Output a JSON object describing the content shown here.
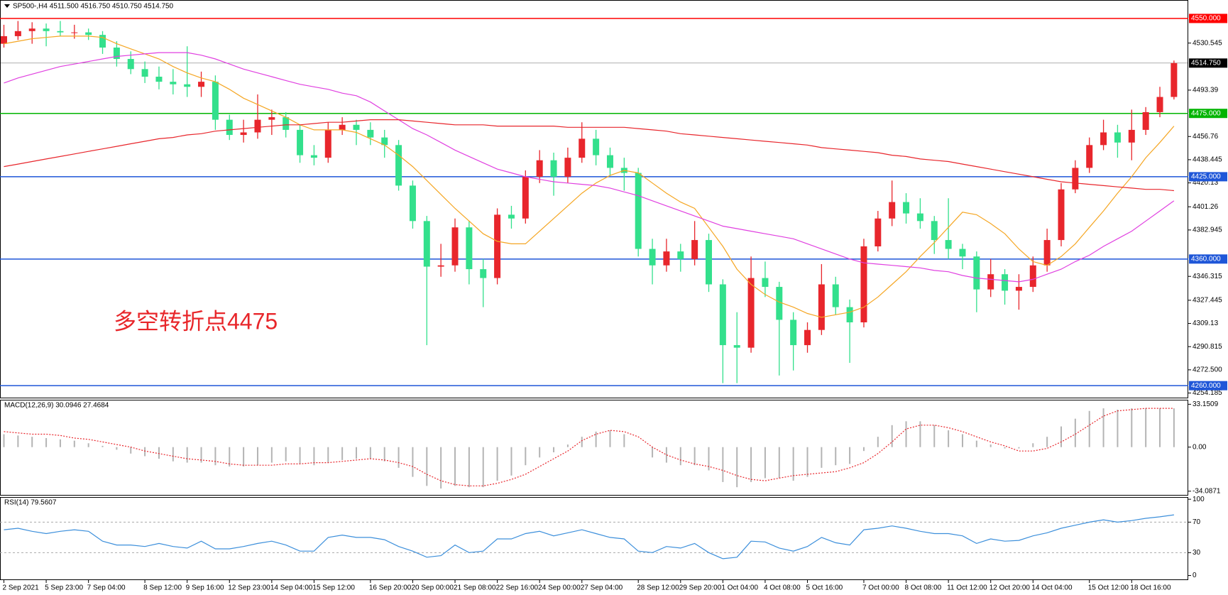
{
  "chart_data": [
    {
      "type": "candlestick",
      "title": "SP500-,H4  4511.500 4516.750 4510.750 4514.750",
      "annotation": "多空转折点4475",
      "categories": [
        "2 Sep 2021",
        null,
        null,
        "5 Sep 23:00",
        null,
        null,
        "7 Sep 04:00",
        null,
        null,
        null,
        "8 Sep 12:00",
        null,
        null,
        "9 Sep 16:00",
        null,
        null,
        "12 Sep 23:00",
        null,
        null,
        "14 Sep 04:00",
        null,
        null,
        "15 Sep 12:00",
        null,
        null,
        null,
        "16 Sep 20:00",
        null,
        null,
        "20 Sep 00:00",
        null,
        null,
        "21 Sep 08:00",
        null,
        null,
        "22 Sep 16:00",
        null,
        null,
        "24 Sep 00:00",
        null,
        null,
        "27 Sep 04:00",
        null,
        null,
        null,
        "28 Sep 12:00",
        null,
        null,
        "29 Sep 20:00",
        null,
        null,
        "1 Oct 04:00",
        null,
        null,
        "4 Oct 08:00",
        null,
        null,
        "5 Oct 16:00",
        null,
        null,
        null,
        "7 Oct 00:00",
        null,
        null,
        "8 Oct 08:00",
        null,
        null,
        "11 Oct 12:00",
        null,
        null,
        "12 Oct 20:00",
        null,
        null,
        "14 Oct 04:00",
        null,
        null,
        null,
        "15 Oct 12:00",
        null,
        null,
        "18 Oct 16:00",
        null,
        null,
        null
      ],
      "open": [
        4530,
        4536,
        4540,
        4542,
        4540,
        4539,
        4539,
        4537,
        4527,
        4518,
        4510,
        4504,
        4500,
        4498,
        4496,
        4500,
        4470,
        4458,
        4460,
        4470,
        4472,
        4462,
        4442,
        4440,
        4462,
        4466,
        4462,
        4456,
        4450,
        4418,
        4390,
        4354,
        4355,
        4385,
        4352,
        4345,
        4395,
        4392,
        4425,
        4438,
        4425,
        4440,
        4455,
        4442,
        4432,
        4428,
        4368,
        4355,
        4366,
        4360,
        4375,
        4340,
        4292,
        4290,
        4345,
        4338,
        4312,
        4292,
        4304,
        4340,
        4322,
        4310,
        4370,
        4392,
        4405,
        4396,
        4390,
        4375,
        4368,
        4362,
        4336,
        4348,
        4335,
        4338,
        4355,
        4375,
        4415,
        4432,
        4450,
        4460,
        4452,
        4462,
        4476,
        4488
      ],
      "high": [
        4545,
        4548,
        4547,
        4546,
        4548,
        4545,
        4542,
        4540,
        4532,
        4524,
        4516,
        4512,
        4510,
        4528,
        4508,
        4505,
        4474,
        4470,
        4490,
        4478,
        4476,
        4466,
        4450,
        4468,
        4472,
        4470,
        4468,
        4462,
        4454,
        4422,
        4394,
        4372,
        4392,
        4390,
        4360,
        4400,
        4402,
        4430,
        4446,
        4444,
        4448,
        4468,
        4462,
        4448,
        4440,
        4432,
        4376,
        4376,
        4372,
        4390,
        4380,
        4344,
        4318,
        4362,
        4358,
        4342,
        4318,
        4310,
        4356,
        4346,
        4328,
        4376,
        4398,
        4422,
        4412,
        4408,
        4394,
        4408,
        4372,
        4366,
        4360,
        4352,
        4348,
        4362,
        4384,
        4420,
        4438,
        4456,
        4470,
        4466,
        4478,
        4480,
        4496,
        4516.75
      ],
      "low": [
        4527,
        4533,
        4530,
        4528,
        4536,
        4534,
        4533,
        4522,
        4512,
        4506,
        4499,
        4494,
        4490,
        4488,
        4488,
        4462,
        4454,
        4452,
        4455,
        4458,
        4456,
        4436,
        4434,
        4436,
        4458,
        4450,
        4450,
        4440,
        4414,
        4384,
        4292,
        4346,
        4350,
        4340,
        4322,
        4340,
        4384,
        4388,
        4420,
        4410,
        4420,
        4436,
        4434,
        4426,
        4414,
        4362,
        4340,
        4350,
        4350,
        4355,
        4334,
        4262,
        4262,
        4286,
        4330,
        4268,
        4272,
        4286,
        4300,
        4316,
        4278,
        4306,
        4366,
        4386,
        4388,
        4384,
        4364,
        4360,
        4352,
        4318,
        4330,
        4324,
        4320,
        4334,
        4350,
        4370,
        4412,
        4428,
        4446,
        4440,
        4438,
        4458,
        4472,
        4486
      ],
      "close": [
        4536,
        4540,
        4542,
        4540,
        4539,
        4539,
        4537,
        4527,
        4518,
        4510,
        4504,
        4500,
        4498,
        4496,
        4500,
        4470,
        4458,
        4460,
        4470,
        4472,
        4462,
        4442,
        4440,
        4462,
        4466,
        4462,
        4456,
        4450,
        4418,
        4390,
        4354,
        4355,
        4385,
        4352,
        4345,
        4395,
        4392,
        4425,
        4438,
        4425,
        4440,
        4455,
        4442,
        4432,
        4428,
        4368,
        4355,
        4366,
        4360,
        4375,
        4340,
        4292,
        4290,
        4345,
        4338,
        4312,
        4292,
        4304,
        4340,
        4322,
        4310,
        4370,
        4392,
        4405,
        4396,
        4390,
        4375,
        4368,
        4362,
        4336,
        4348,
        4335,
        4338,
        4355,
        4375,
        4415,
        4432,
        4450,
        4460,
        4452,
        4462,
        4476,
        4488,
        4514.75
      ],
      "up_color": "#e8262c",
      "down_color": "#33e08c",
      "lines": [
        {
          "color": "#f5a623",
          "values": [
            4530,
            4532,
            4534,
            4535,
            4536,
            4536,
            4536,
            4535,
            4530,
            4526,
            4522,
            4518,
            4512,
            4507,
            4503,
            4500,
            4494,
            4487,
            4482,
            4477,
            4472,
            4466,
            4462,
            4462,
            4462,
            4460,
            4455,
            4450,
            4442,
            4433,
            4422,
            4411,
            4400,
            4390,
            4380,
            4374,
            4372,
            4372,
            4382,
            4392,
            4402,
            4412,
            4420,
            4426,
            4430,
            4428,
            4420,
            4412,
            4405,
            4400,
            4385,
            4370,
            4352,
            4340,
            4332,
            4326,
            4322,
            4317,
            4314,
            4316,
            4318,
            4322,
            4330,
            4340,
            4350,
            4362,
            4373,
            4385,
            4397,
            4395,
            4388,
            4380,
            4368,
            4358,
            4355,
            4362,
            4372,
            4385,
            4398,
            4412,
            4425,
            4440,
            4452,
            4465
          ]
        },
        {
          "color": "#e040e0",
          "values": [
            4499,
            4503,
            4506,
            4509,
            4512,
            4514,
            4516,
            4518,
            4520,
            4521,
            4522,
            4523,
            4523,
            4523,
            4521,
            4518,
            4514,
            4510,
            4507,
            4504,
            4501,
            4498,
            4496,
            4494,
            4491,
            4489,
            4484,
            4477,
            4470,
            4463,
            4458,
            4452,
            4446,
            4441,
            4436,
            4431,
            4428,
            4425,
            4423,
            4421,
            4420,
            4419,
            4418,
            4416,
            4413,
            4410,
            4406,
            4402,
            4398,
            4394,
            4390,
            4386,
            4384,
            4382,
            4380,
            4378,
            4376,
            4372,
            4368,
            4364,
            4360,
            4357,
            4356,
            4355,
            4354,
            4353,
            4351,
            4350,
            4347,
            4345,
            4344,
            4343,
            4342,
            4344,
            4348,
            4352,
            4358,
            4363,
            4370,
            4376,
            4382,
            4390,
            4398,
            4406
          ]
        },
        {
          "color": "#e8262c",
          "values": [
            4433,
            4435,
            4437,
            4439,
            4441,
            4443,
            4445,
            4447,
            4449,
            4451,
            4453,
            4455,
            4456,
            4458,
            4459,
            4461,
            4462,
            4463,
            4464,
            4465,
            4466,
            4466,
            4467,
            4468,
            4468,
            4469,
            4470,
            4470,
            4470,
            4469,
            4468,
            4467,
            4466,
            4466,
            4466,
            4465,
            4465,
            4465,
            4465,
            4465,
            4464,
            4464,
            4464,
            4464,
            4464,
            4463,
            4462,
            4461,
            4459,
            4458,
            4457,
            4456,
            4455,
            4454,
            4453,
            4452,
            4451,
            4450,
            4448,
            4447,
            4446,
            4445,
            4444,
            4442,
            4441,
            4439,
            4438,
            4437,
            4435,
            4433,
            4431,
            4429,
            4427,
            4425,
            4423,
            4421,
            4420,
            4419,
            4418,
            4417,
            4416,
            4415,
            4415,
            4414
          ]
        }
      ],
      "levels": [
        {
          "value": 4550,
          "label": "4550.000",
          "color": "#ff0000"
        },
        {
          "value": 4514.75,
          "label": "4514.750",
          "color": "#000000"
        },
        {
          "value": 4475,
          "label": "4475.000",
          "color": "#00b400"
        },
        {
          "value": 4425,
          "label": "4425.000",
          "color": "#1e56d8"
        },
        {
          "value": 4360,
          "label": "4360.000",
          "color": "#1e56d8"
        },
        {
          "value": 4260,
          "label": "4260.000",
          "color": "#1e56d8"
        }
      ],
      "ylim": [
        4250,
        4564
      ],
      "yticks": [
        4530.545,
        4493.39,
        4456.76,
        4438.445,
        4420.13,
        4401.26,
        4382.945,
        4346.315,
        4327.445,
        4309.13,
        4290.815,
        {
          "value": 4272.5,
          "label": "4272.500"
        },
        4254.185
      ]
    },
    {
      "type": "macd",
      "title": "MACD(12,26,9) 30.0946 27.4684",
      "values": [
        10,
        9,
        8,
        7,
        6,
        5,
        3,
        1,
        -2,
        -5,
        -7,
        -9,
        -11,
        -12,
        -12,
        -14,
        -15,
        -15,
        -14,
        -12,
        -11,
        -13,
        -14,
        -12,
        -10,
        -9,
        -9,
        -11,
        -16,
        -23,
        -30,
        -32,
        -30,
        -31,
        -31,
        -26,
        -22,
        -14,
        -8,
        -4,
        2,
        8,
        12,
        13,
        10,
        0,
        -8,
        -12,
        -14,
        -14,
        -18,
        -27,
        -31,
        -27,
        -24,
        -24,
        -26,
        -23,
        -16,
        -14,
        -13,
        -3,
        8,
        17,
        20,
        20,
        17,
        13,
        10,
        5,
        2,
        -1,
        -1,
        3,
        8,
        16,
        22,
        28,
        30,
        29,
        30,
        30,
        30,
        30
      ],
      "signal": [
        12,
        11,
        10,
        10,
        9,
        7,
        6,
        4,
        2,
        0,
        -3,
        -5,
        -7,
        -9,
        -10,
        -11,
        -13,
        -14,
        -14,
        -14,
        -13,
        -13,
        -12,
        -12,
        -11,
        -10,
        -9,
        -10,
        -12,
        -15,
        -21,
        -26,
        -29,
        -30,
        -30,
        -28,
        -25,
        -21,
        -15,
        -9,
        -3,
        5,
        10,
        13,
        12,
        8,
        0,
        -6,
        -10,
        -13,
        -15,
        -18,
        -22,
        -25,
        -26,
        -24,
        -22,
        -21,
        -20,
        -19,
        -16,
        -12,
        -5,
        4,
        14,
        17,
        17,
        15,
        12,
        8,
        4,
        1,
        -3,
        -3,
        -1,
        4,
        10,
        17,
        24,
        28,
        29,
        30,
        30,
        30
      ],
      "color": "#b4b4b4",
      "signal_color": "#e8262c",
      "ylim": [
        -37.5,
        36.1
      ],
      "yticks": [
        33.1509,
        {
          "value": 0,
          "label": "0.00"
        },
        -34.0871
      ]
    },
    {
      "type": "rsi",
      "title": "RSI(14) 79.5607",
      "values": [
        60,
        62,
        58,
        55,
        58,
        60,
        58,
        45,
        40,
        40,
        38,
        42,
        38,
        36,
        45,
        35,
        35,
        38,
        42,
        45,
        40,
        32,
        32,
        50,
        53,
        50,
        50,
        47,
        38,
        32,
        24,
        26,
        40,
        30,
        32,
        48,
        48,
        55,
        58,
        52,
        56,
        60,
        55,
        50,
        48,
        32,
        30,
        38,
        36,
        42,
        30,
        22,
        24,
        45,
        44,
        36,
        32,
        38,
        50,
        43,
        40,
        60,
        62,
        65,
        62,
        58,
        55,
        55,
        52,
        42,
        48,
        45,
        46,
        52,
        56,
        62,
        66,
        70,
        73,
        70,
        72,
        75,
        77,
        79.56
      ],
      "color": "#3c8fdb",
      "levels": [
        70,
        30
      ],
      "ylim": [
        -6,
        102
      ],
      "yticks": [
        100,
        70,
        30,
        0
      ]
    }
  ]
}
